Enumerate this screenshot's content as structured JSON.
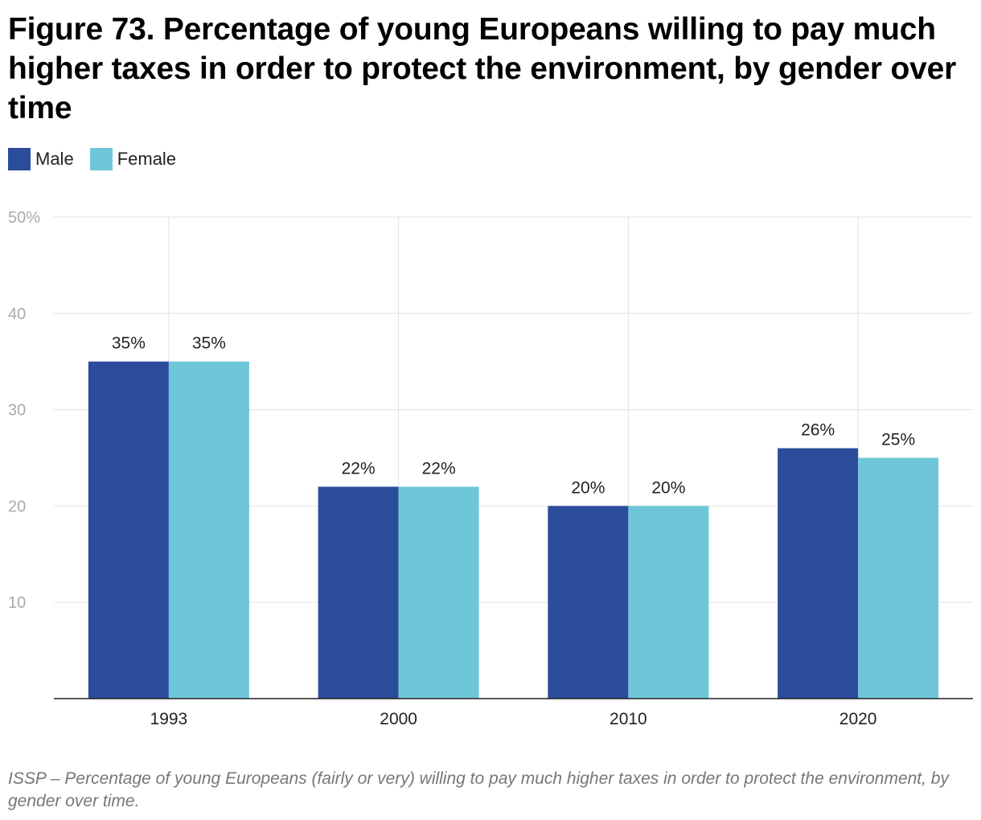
{
  "chart_data": {
    "type": "bar",
    "title": "Figure 73. Percentage of young Europeans willing to pay much higher taxes in order to protect the environment, by gender over time",
    "categories": [
      "1993",
      "2000",
      "2010",
      "2020"
    ],
    "series": [
      {
        "name": "Male",
        "values": [
          35,
          22,
          20,
          26
        ],
        "labels": [
          "35%",
          "22%",
          "20%",
          "26%"
        ],
        "color": "#2b4b9b"
      },
      {
        "name": "Female",
        "values": [
          35,
          22,
          20,
          25
        ],
        "labels": [
          "35%",
          "22%",
          "20%",
          "25%"
        ],
        "color": "#6fc6d9"
      }
    ],
    "ylim": [
      0,
      50
    ],
    "yticks": [
      10,
      20,
      30,
      40,
      50
    ],
    "ytick_labels": [
      "10",
      "20",
      "30",
      "40",
      "50%"
    ],
    "xlabel": "",
    "ylabel": "",
    "grid": true,
    "legend": "top-left"
  },
  "caption": "ISSP – Percentage of young Europeans (fairly or very) willing to pay much higher taxes in order to protect the environment, by gender over time."
}
